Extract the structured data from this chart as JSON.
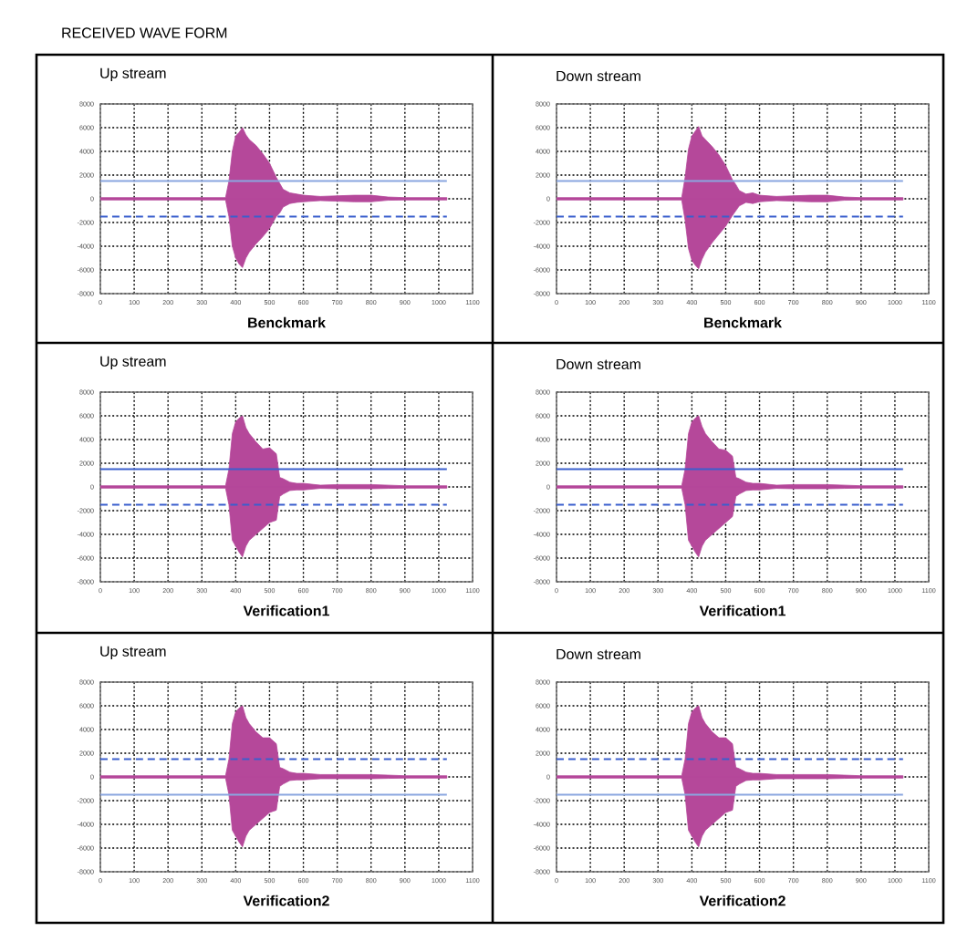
{
  "chart_data": [
    {
      "type": "area",
      "title": "Up stream",
      "xlabel": "Benckmark",
      "annotations": [
        "RECEIVED WAVE FORM"
      ],
      "xlim": [
        0,
        1100
      ],
      "xticks": [
        0,
        100,
        200,
        300,
        400,
        500,
        600,
        700,
        800,
        900,
        1000,
        1100
      ],
      "ylim": [
        -8000,
        8000
      ],
      "yticks": [
        -8000,
        -6000,
        -4000,
        -2000,
        0,
        2000,
        4000,
        6000,
        8000
      ],
      "grid": true,
      "x": [
        0,
        100,
        200,
        300,
        370,
        380,
        390,
        400,
        410,
        420,
        430,
        440,
        460,
        480,
        500,
        520,
        530,
        540,
        560,
        580,
        600,
        650,
        700,
        750,
        800,
        850,
        900,
        950,
        1000,
        1024
      ],
      "series": [
        {
          "color": "#b5489a",
          "values": [
            100,
            100,
            100,
            100,
            100,
            1500,
            4000,
            5300,
            5600,
            6000,
            5400,
            5000,
            4500,
            3800,
            3000,
            1800,
            1300,
            800,
            500,
            400,
            300,
            200,
            250,
            300,
            300,
            150,
            100,
            100,
            100,
            100
          ]
        },
        {
          "color": "#b5489a",
          "values": [
            -100,
            -100,
            -100,
            -100,
            -100,
            -1500,
            -4000,
            -5000,
            -5500,
            -5800,
            -5000,
            -4500,
            -3800,
            -3200,
            -2500,
            -1500,
            -1200,
            -700,
            -400,
            -300,
            -250,
            -150,
            -200,
            -250,
            -250,
            -120,
            -100,
            -100,
            -100,
            -100
          ]
        }
      ],
      "ref_lines": [
        {
          "axis": "y",
          "value": 1500,
          "color": "#8aa6e0",
          "line_style": "solid"
        },
        {
          "axis": "y",
          "value": -1500,
          "color": "#3a5fcd",
          "line_style": "dashed"
        }
      ]
    },
    {
      "type": "area",
      "title": "Down stream",
      "xlabel": "Benckmark",
      "xlim": [
        0,
        1100
      ],
      "xticks": [
        0,
        100,
        200,
        300,
        400,
        500,
        600,
        700,
        800,
        900,
        1000,
        1100
      ],
      "ylim": [
        -8000,
        8000
      ],
      "yticks": [
        -8000,
        -6000,
        -4000,
        -2000,
        0,
        2000,
        4000,
        6000,
        8000
      ],
      "grid": true,
      "x": [
        0,
        100,
        200,
        300,
        370,
        380,
        390,
        400,
        410,
        420,
        430,
        440,
        460,
        480,
        500,
        520,
        530,
        540,
        560,
        580,
        600,
        650,
        700,
        750,
        800,
        850,
        900,
        950,
        1000,
        1024
      ],
      "series": [
        {
          "color": "#b5489a",
          "values": [
            100,
            100,
            100,
            100,
            100,
            1800,
            4200,
            5300,
            5700,
            6100,
            5300,
            5000,
            4400,
            3700,
            2800,
            1600,
            1200,
            700,
            400,
            500,
            300,
            200,
            250,
            300,
            300,
            150,
            100,
            100,
            100,
            100
          ]
        },
        {
          "color": "#b5489a",
          "values": [
            -100,
            -100,
            -100,
            -100,
            -100,
            -1800,
            -4200,
            -5200,
            -5600,
            -5900,
            -5100,
            -4500,
            -3700,
            -3000,
            -2300,
            -1400,
            -1000,
            -600,
            -300,
            -400,
            -250,
            -150,
            -200,
            -250,
            -250,
            -120,
            -100,
            -100,
            -100,
            -100
          ]
        }
      ],
      "ref_lines": [
        {
          "axis": "y",
          "value": 1500,
          "color": "#8aa6e0",
          "line_style": "solid"
        },
        {
          "axis": "y",
          "value": -1500,
          "color": "#3a5fcd",
          "line_style": "dashed"
        }
      ]
    },
    {
      "type": "area",
      "title": "Up stream",
      "xlabel": "Verification1",
      "xlim": [
        0,
        1100
      ],
      "xticks": [
        0,
        100,
        200,
        300,
        400,
        500,
        600,
        700,
        800,
        900,
        1000,
        1100
      ],
      "ylim": [
        -8000,
        8000
      ],
      "yticks": [
        -8000,
        -6000,
        -4000,
        -2000,
        0,
        2000,
        4000,
        6000,
        8000
      ],
      "grid": true,
      "x": [
        0,
        100,
        200,
        300,
        370,
        380,
        390,
        400,
        410,
        420,
        430,
        440,
        460,
        480,
        500,
        520,
        530,
        540,
        560,
        580,
        600,
        650,
        700,
        750,
        800,
        850,
        900,
        950,
        1000,
        1024
      ],
      "series": [
        {
          "color": "#b5489a",
          "values": [
            100,
            100,
            100,
            100,
            100,
            1500,
            4500,
            5500,
            5800,
            6000,
            5000,
            4500,
            3800,
            3200,
            3300,
            2800,
            800,
            700,
            400,
            300,
            300,
            150,
            200,
            200,
            200,
            150,
            100,
            100,
            100,
            100
          ]
        },
        {
          "color": "#b5489a",
          "values": [
            -100,
            -100,
            -100,
            -100,
            -100,
            -1500,
            -4500,
            -5000,
            -5500,
            -5900,
            -5000,
            -4500,
            -4000,
            -3500,
            -3000,
            -2800,
            -800,
            -600,
            -300,
            -250,
            -250,
            -120,
            -150,
            -150,
            -150,
            -120,
            -100,
            -100,
            -100,
            -100
          ]
        }
      ],
      "ref_lines": [
        {
          "axis": "y",
          "value": 1500,
          "color": "#3a5fcd",
          "line_style": "solid"
        },
        {
          "axis": "y",
          "value": -1500,
          "color": "#3a5fcd",
          "line_style": "dashed"
        }
      ]
    },
    {
      "type": "area",
      "title": "Down stream",
      "xlabel": "Verification1",
      "xlim": [
        0,
        1100
      ],
      "xticks": [
        0,
        100,
        200,
        300,
        400,
        500,
        600,
        700,
        800,
        900,
        1000,
        1100
      ],
      "ylim": [
        -8000,
        8000
      ],
      "yticks": [
        -8000,
        -6000,
        -4000,
        -2000,
        0,
        2000,
        4000,
        6000,
        8000
      ],
      "grid": true,
      "x": [
        0,
        100,
        200,
        300,
        370,
        380,
        390,
        400,
        410,
        420,
        430,
        440,
        460,
        480,
        500,
        520,
        530,
        540,
        560,
        580,
        600,
        650,
        700,
        750,
        800,
        850,
        900,
        950,
        1000,
        1024
      ],
      "series": [
        {
          "color": "#b5489a",
          "values": [
            100,
            100,
            100,
            100,
            100,
            1500,
            4500,
            5500,
            5800,
            6000,
            5100,
            4500,
            3800,
            3200,
            3100,
            2600,
            800,
            700,
            400,
            300,
            300,
            150,
            200,
            200,
            200,
            150,
            100,
            100,
            100,
            100
          ]
        },
        {
          "color": "#b5489a",
          "values": [
            -100,
            -100,
            -100,
            -100,
            -100,
            -1500,
            -4500,
            -5000,
            -5500,
            -5900,
            -5000,
            -4500,
            -4000,
            -3500,
            -3000,
            -2500,
            -800,
            -600,
            -300,
            -250,
            -250,
            -120,
            -150,
            -150,
            -150,
            -120,
            -100,
            -100,
            -100,
            -100
          ]
        }
      ],
      "ref_lines": [
        {
          "axis": "y",
          "value": 1500,
          "color": "#3a5fcd",
          "line_style": "solid"
        },
        {
          "axis": "y",
          "value": -1500,
          "color": "#3a5fcd",
          "line_style": "dashed"
        }
      ]
    },
    {
      "type": "area",
      "title": "Up stream",
      "xlabel": "Verification2",
      "xlim": [
        0,
        1100
      ],
      "xticks": [
        0,
        100,
        200,
        300,
        400,
        500,
        600,
        700,
        800,
        900,
        1000,
        1100
      ],
      "ylim": [
        -8000,
        8000
      ],
      "yticks": [
        -8000,
        -6000,
        -4000,
        -2000,
        0,
        2000,
        4000,
        6000,
        8000
      ],
      "grid": true,
      "x": [
        0,
        100,
        200,
        300,
        370,
        380,
        390,
        400,
        410,
        420,
        430,
        440,
        460,
        480,
        500,
        520,
        530,
        540,
        560,
        580,
        600,
        650,
        700,
        750,
        800,
        850,
        900,
        950,
        1000,
        1024
      ],
      "series": [
        {
          "color": "#b5489a",
          "values": [
            100,
            100,
            100,
            100,
            100,
            1500,
            4500,
            5500,
            5800,
            6000,
            5000,
            4500,
            3800,
            3300,
            3300,
            2800,
            800,
            700,
            400,
            300,
            300,
            200,
            200,
            200,
            200,
            150,
            100,
            100,
            100,
            100
          ]
        },
        {
          "color": "#b5489a",
          "values": [
            -100,
            -100,
            -100,
            -100,
            -100,
            -1500,
            -4500,
            -5000,
            -5500,
            -5900,
            -5000,
            -4500,
            -4000,
            -3500,
            -3000,
            -2800,
            -800,
            -600,
            -300,
            -250,
            -250,
            -150,
            -150,
            -150,
            -150,
            -120,
            -100,
            -100,
            -100,
            -100
          ]
        }
      ],
      "ref_lines": [
        {
          "axis": "y",
          "value": 1500,
          "color": "#3a5fcd",
          "line_style": "dashed"
        },
        {
          "axis": "y",
          "value": -1500,
          "color": "#8aa6e0",
          "line_style": "solid"
        }
      ]
    },
    {
      "type": "area",
      "title": "Down stream",
      "xlabel": "Verification2",
      "xlim": [
        0,
        1100
      ],
      "xticks": [
        0,
        100,
        200,
        300,
        400,
        500,
        600,
        700,
        800,
        900,
        1000,
        1100
      ],
      "ylim": [
        -8000,
        8000
      ],
      "yticks": [
        -8000,
        -6000,
        -4000,
        -2000,
        0,
        2000,
        4000,
        6000,
        8000
      ],
      "grid": true,
      "x": [
        0,
        100,
        200,
        300,
        370,
        380,
        390,
        400,
        410,
        420,
        430,
        440,
        460,
        480,
        500,
        520,
        530,
        540,
        560,
        580,
        600,
        650,
        700,
        750,
        800,
        850,
        900,
        950,
        1000,
        1024
      ],
      "series": [
        {
          "color": "#b5489a",
          "values": [
            100,
            100,
            100,
            100,
            100,
            1500,
            4500,
            5500,
            5800,
            6000,
            5000,
            4500,
            3800,
            3300,
            3300,
            2800,
            800,
            700,
            400,
            300,
            300,
            200,
            200,
            200,
            200,
            150,
            100,
            100,
            100,
            100
          ]
        },
        {
          "color": "#b5489a",
          "values": [
            -100,
            -100,
            -100,
            -100,
            -100,
            -1500,
            -4500,
            -5000,
            -5500,
            -5900,
            -5000,
            -4500,
            -4000,
            -3500,
            -3000,
            -2800,
            -800,
            -600,
            -300,
            -250,
            -250,
            -150,
            -150,
            -150,
            -150,
            -120,
            -100,
            -100,
            -100,
            -100
          ]
        }
      ],
      "ref_lines": [
        {
          "axis": "y",
          "value": 1500,
          "color": "#3a5fcd",
          "line_style": "dashed"
        },
        {
          "axis": "y",
          "value": -1500,
          "color": "#8aa6e0",
          "line_style": "solid"
        }
      ]
    }
  ]
}
